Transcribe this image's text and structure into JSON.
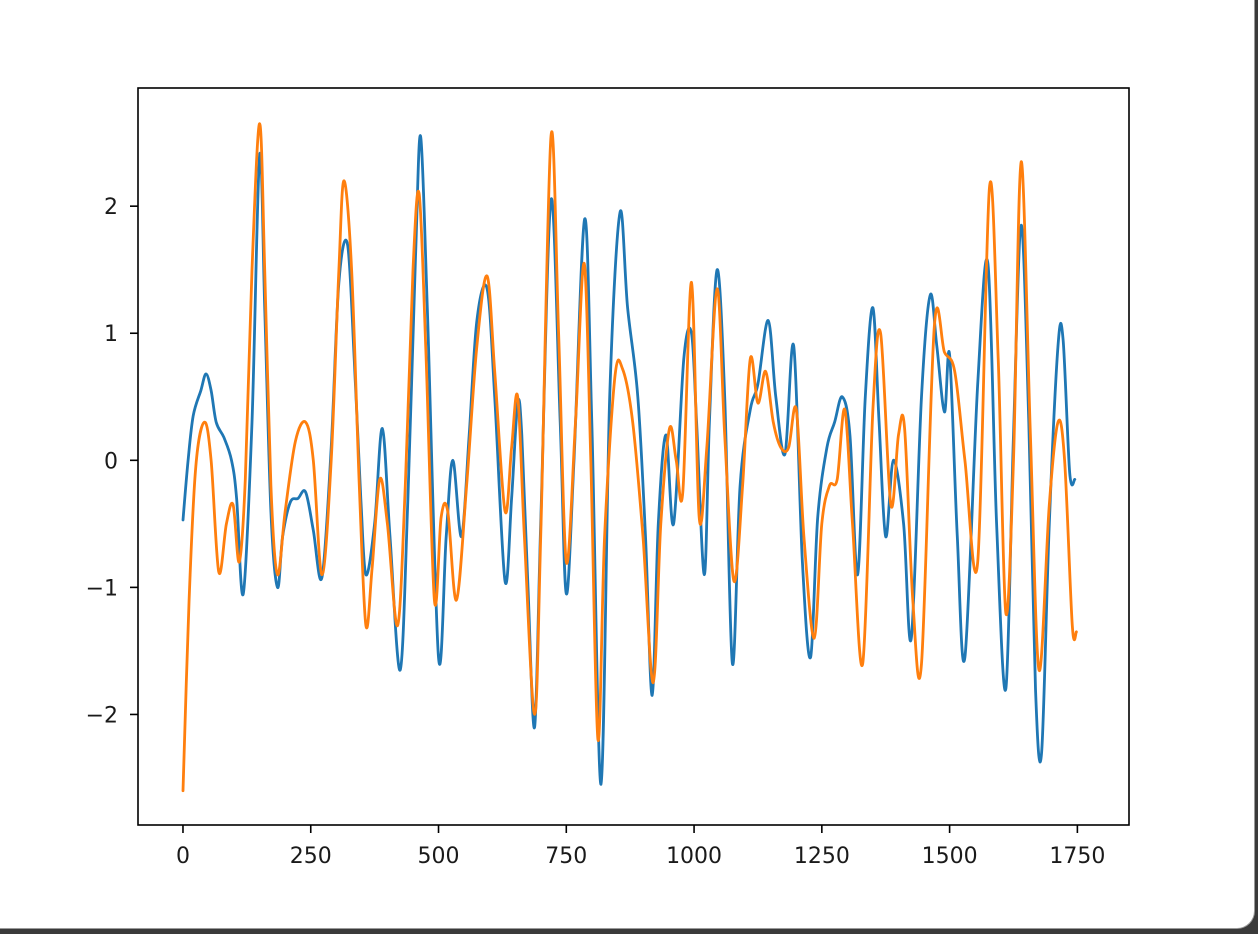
{
  "chart_data": {
    "type": "line",
    "title": "",
    "xlabel": "",
    "ylabel": "",
    "xlim": [
      -88,
      1851
    ],
    "ylim": [
      -2.87,
      2.93
    ],
    "x_ticks": [
      0,
      250,
      500,
      750,
      1000,
      1250,
      1500,
      1750
    ],
    "x_tick_labels": [
      "0",
      "250",
      "500",
      "750",
      "1000",
      "1250",
      "1500",
      "1750"
    ],
    "y_ticks": [
      -2,
      -1,
      0,
      1,
      2
    ],
    "y_tick_labels": [
      "−2",
      "−1",
      "0",
      "1",
      "2"
    ],
    "grid": false,
    "series": [
      {
        "color": "#1f77b4",
        "x": [
          0,
          10,
          20,
          35,
          45,
          55,
          65,
          80,
          95,
          105,
          118,
          135,
          150,
          160,
          172,
          185,
          195,
          210,
          225,
          240,
          255,
          272,
          290,
          305,
          322,
          335,
          348,
          358,
          375,
          390,
          405,
          425,
          440,
          455,
          465,
          478,
          500,
          515,
          528,
          545,
          560,
          575,
          595,
          610,
          630,
          643,
          655,
          663,
          675,
          688,
          700,
          720,
          738,
          750,
          765,
          786,
          800,
          818,
          835,
          855,
          870,
          890,
          905,
          918,
          930,
          945,
          960,
          980,
          995,
          1005,
          1020,
          1030,
          1045,
          1060,
          1075,
          1090,
          1110,
          1125,
          1145,
          1160,
          1178,
          1195,
          1212,
          1228,
          1242,
          1260,
          1275,
          1290,
          1305,
          1320,
          1335,
          1350,
          1362,
          1375,
          1390,
          1410,
          1425,
          1445,
          1462,
          1475,
          1490,
          1500,
          1515,
          1530,
          1555,
          1575,
          1592,
          1610,
          1625,
          1640,
          1655,
          1668,
          1680,
          1695,
          1712,
          1722,
          1735,
          1745
        ],
        "y": [
          -0.47,
          0.0,
          0.35,
          0.55,
          0.68,
          0.55,
          0.3,
          0.18,
          0.0,
          -0.3,
          -1.05,
          0.3,
          2.4,
          1.2,
          -0.4,
          -1.0,
          -0.6,
          -0.33,
          -0.3,
          -0.25,
          -0.55,
          -0.92,
          0.1,
          1.4,
          1.7,
          0.8,
          -0.3,
          -0.9,
          -0.5,
          0.25,
          -0.6,
          -1.65,
          -0.3,
          1.6,
          2.55,
          1.2,
          -1.55,
          -0.6,
          0.0,
          -0.6,
          0.2,
          1.1,
          1.35,
          0.5,
          -0.95,
          -0.3,
          0.45,
          0.2,
          -1.0,
          -2.1,
          -0.5,
          2.05,
          0.3,
          -1.05,
          0.0,
          1.9,
          0.3,
          -2.55,
          0.5,
          1.95,
          1.2,
          0.5,
          -0.6,
          -1.85,
          -0.5,
          0.2,
          -0.5,
          0.8,
          1.0,
          0.3,
          -0.9,
          0.3,
          1.5,
          0.5,
          -1.6,
          -0.2,
          0.4,
          0.6,
          1.1,
          0.5,
          0.05,
          0.9,
          -0.8,
          -1.55,
          -0.45,
          0.1,
          0.3,
          0.5,
          0.2,
          -0.9,
          0.5,
          1.2,
          0.3,
          -0.6,
          0.0,
          -0.5,
          -1.4,
          0.5,
          1.3,
          0.9,
          0.38,
          0.83,
          -0.6,
          -1.55,
          0.6,
          1.55,
          -0.5,
          -1.8,
          0.2,
          1.85,
          0.3,
          -1.8,
          -2.3,
          -0.5,
          0.9,
          0.95,
          -0.1,
          -0.15
        ]
      },
      {
        "color": "#ff7f0e",
        "x": [
          0,
          12,
          25,
          42,
          55,
          70,
          85,
          98,
          110,
          122,
          135,
          150,
          160,
          172,
          185,
          200,
          220,
          240,
          255,
          272,
          290,
          305,
          315,
          330,
          345,
          358,
          370,
          385,
          400,
          420,
          435,
          450,
          462,
          475,
          492,
          505,
          518,
          535,
          555,
          575,
          595,
          610,
          630,
          643,
          655,
          668,
          688,
          700,
          720,
          735,
          750,
          768,
          785,
          798,
          812,
          825,
          845,
          860,
          880,
          900,
          920,
          935,
          952,
          965,
          978,
          995,
          1010,
          1025,
          1045,
          1060,
          1078,
          1095,
          1110,
          1125,
          1140,
          1155,
          1170,
          1185,
          1200,
          1215,
          1235,
          1250,
          1265,
          1280,
          1295,
          1310,
          1330,
          1350,
          1365,
          1385,
          1400,
          1412,
          1428,
          1445,
          1470,
          1490,
          1510,
          1530,
          1555,
          1578,
          1595,
          1610,
          1625,
          1640,
          1658,
          1675,
          1695,
          1712,
          1725,
          1740,
          1748
        ],
        "y": [
          -2.6,
          -1.1,
          -0.05,
          0.3,
          0.0,
          -0.88,
          -0.5,
          -0.35,
          -0.8,
          -0.15,
          1.5,
          2.65,
          1.5,
          -0.2,
          -0.9,
          -0.4,
          0.15,
          0.3,
          0.0,
          -0.9,
          0.0,
          1.5,
          2.2,
          1.5,
          -0.2,
          -1.3,
          -0.85,
          -0.15,
          -0.5,
          -1.3,
          -0.2,
          1.5,
          2.1,
          0.9,
          -1.1,
          -0.45,
          -0.4,
          -1.1,
          -0.2,
          0.9,
          1.45,
          0.7,
          -0.4,
          0.1,
          0.5,
          -0.6,
          -2.0,
          -0.6,
          2.55,
          1.0,
          -0.8,
          0.3,
          1.55,
          0.0,
          -2.2,
          -0.6,
          0.65,
          0.72,
          0.3,
          -0.6,
          -1.75,
          -0.5,
          0.25,
          0.0,
          -0.25,
          1.4,
          -0.45,
          0.1,
          1.35,
          0.2,
          -0.95,
          -0.2,
          0.8,
          0.45,
          0.7,
          0.3,
          0.1,
          0.1,
          0.4,
          -0.6,
          -1.4,
          -0.5,
          -0.2,
          -0.15,
          0.4,
          -0.5,
          -1.6,
          0.4,
          1.0,
          -0.35,
          0.2,
          0.25,
          -1.1,
          -1.6,
          1.05,
          0.85,
          0.7,
          0.0,
          -0.8,
          2.15,
          0.8,
          -1.2,
          0.0,
          2.35,
          0.2,
          -1.65,
          -0.35,
          0.3,
          0.0,
          -1.3,
          -1.35
        ]
      }
    ]
  }
}
